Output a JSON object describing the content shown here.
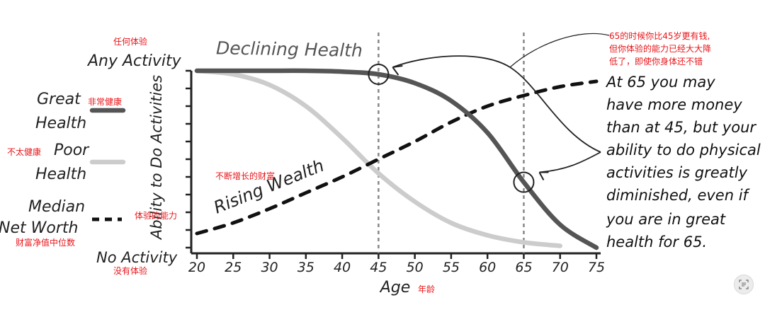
{
  "chart_data": {
    "type": "line",
    "title": "",
    "xlabel": "Age",
    "ylabel": "Ability to Do Activities",
    "xlim": [
      20,
      75
    ],
    "ylim": [
      0,
      1
    ],
    "x_ticks": [
      20,
      25,
      30,
      35,
      40,
      45,
      50,
      55,
      60,
      65,
      70,
      75
    ],
    "y_top_label": "Any Activity",
    "y_bottom_label": "No Activity",
    "series": [
      {
        "name": "Great Health",
        "label": "Declining Health",
        "color": "#555555",
        "style": "solid-thick",
        "x": [
          20,
          25,
          30,
          35,
          40,
          45,
          50,
          55,
          60,
          65,
          70,
          75
        ],
        "y": [
          1.0,
          1.0,
          1.0,
          1.0,
          0.995,
          0.98,
          0.93,
          0.83,
          0.65,
          0.37,
          0.13,
          0.0
        ]
      },
      {
        "name": "Poor Health",
        "color": "#cccccc",
        "style": "solid-thick",
        "x": [
          20,
          25,
          30,
          35,
          40,
          45,
          50,
          55,
          60,
          65,
          70
        ],
        "y": [
          1.0,
          0.98,
          0.92,
          0.8,
          0.62,
          0.42,
          0.26,
          0.14,
          0.07,
          0.03,
          0.01
        ]
      },
      {
        "name": "Median Net Worth",
        "label": "Rising Wealth",
        "color": "#111111",
        "style": "dashed",
        "x": [
          20,
          25,
          30,
          35,
          40,
          45,
          50,
          55,
          60,
          65,
          70,
          75
        ],
        "y": [
          0.08,
          0.14,
          0.22,
          0.31,
          0.4,
          0.5,
          0.6,
          0.71,
          0.8,
          0.86,
          0.91,
          0.94
        ]
      }
    ],
    "reference_lines": [
      45,
      65
    ],
    "grid": false,
    "legend_position": "left"
  },
  "labels": {
    "y_top": "Any Activity",
    "y_bottom": "No Activity",
    "y_axis": "Ability to Do Activities",
    "x_axis": "Age",
    "series_declining": "Declining Health",
    "series_rising": "Rising Wealth"
  },
  "legend": {
    "great_line1": "Great",
    "great_line2": "Health",
    "poor_line1": "Poor",
    "poor_line2": "Health",
    "median_line1": "Median",
    "median_line2": "Net Worth"
  },
  "annotation_en": [
    "At 65 you may",
    "have more money",
    "than at 45, but your",
    "ability to do physical",
    "activities is greatly",
    "diminished, even if",
    "you are in great",
    "health for 65."
  ],
  "translations": {
    "any_activity": "任何体验",
    "great_health": "非常健康",
    "poor_health": "不太健康",
    "rising_wealth": "不断增长的财富",
    "ability": "体验的能力",
    "median_net_worth": "财富净值中位数",
    "no_activity": "没有体验",
    "age": "年龄",
    "note_line1": "65的时候你比45岁更有钱,",
    "note_line2": "但你体验的能力已经大大降",
    "note_line3": "低了，即使你身体还不错"
  },
  "ui": {
    "ocr_icon": "text-recognition-icon"
  }
}
